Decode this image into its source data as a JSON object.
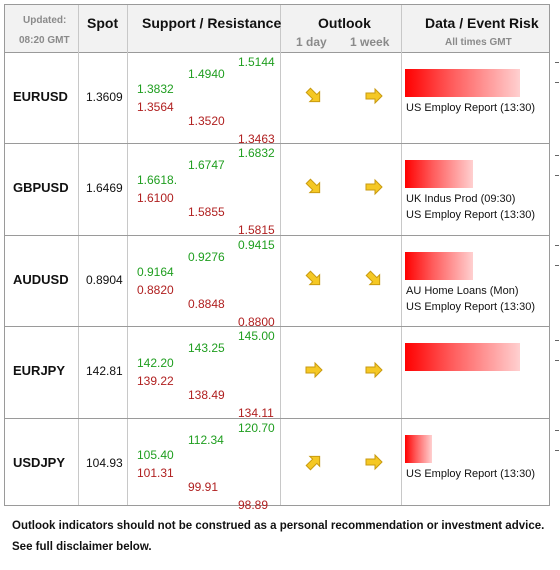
{
  "header": {
    "updated_label": "Updated:",
    "updated_time": "08:20 GMT",
    "spot": "Spot",
    "support_resistance": "Support / Resistance",
    "outlook": "Outlook",
    "outlook_1day": "1 day",
    "outlook_1week": "1 week",
    "data_event_risk": "Data / Event Risk",
    "all_times": "All times GMT"
  },
  "rows": [
    {
      "pair": "EURUSD",
      "spot": "1.3609",
      "s1_top": "1.3832",
      "s1_bottom": "1.3564",
      "s2_top": "1.4940",
      "s2_bottom": "1.3520",
      "s3_top": "1.5144",
      "s3_bottom": "1.3463",
      "outlook_1day": "down-right",
      "outlook_1week": "right",
      "risk_level": 0.85,
      "events": [
        "US Employ Report (13:30)"
      ]
    },
    {
      "pair": "GBPUSD",
      "spot": "1.6469",
      "s1_top": "1.6618.",
      "s1_bottom": "1.6100",
      "s2_top": "1.6747",
      "s2_bottom": "1.5855",
      "s3_top": "1.6832",
      "s3_bottom": "1.5815",
      "outlook_1day": "down-right",
      "outlook_1week": "right",
      "risk_level": 0.5,
      "events": [
        "UK Indus Prod (09:30)",
        "US Employ Report (13:30)"
      ]
    },
    {
      "pair": "AUDUSD",
      "spot": "0.8904",
      "s1_top": "0.9164",
      "s1_bottom": "0.8820",
      "s2_top": "0.9276",
      "s2_bottom": "0.8848",
      "s3_top": "0.9415",
      "s3_bottom": "0.8800",
      "outlook_1day": "down-right",
      "outlook_1week": "down-right",
      "risk_level": 0.5,
      "events": [
        "AU Home Loans   (Mon)",
        "US Employ Report (13:30)"
      ]
    },
    {
      "pair": "EURJPY",
      "spot": "142.81",
      "s1_top": "142.20",
      "s1_bottom": "139.22",
      "s2_top": "143.25",
      "s2_bottom": "138.49",
      "s3_top": "145.00",
      "s3_bottom": "134.11",
      "outlook_1day": "right",
      "outlook_1week": "right",
      "risk_level": 0.85,
      "events": []
    },
    {
      "pair": "USDJPY",
      "spot": "104.93",
      "s1_top": "105.40",
      "s1_bottom": "101.31",
      "s2_top": "112.34",
      "s2_bottom": "99.91",
      "s3_top": "120.70",
      "s3_bottom": "98.89",
      "outlook_1day": "up-right",
      "outlook_1week": "right",
      "risk_level": 0.2,
      "events": [
        "US Employ Report (13:30)"
      ]
    }
  ],
  "footer": {
    "line1": "Outlook indicators should not be construed as a personal recommendation or investment advice.",
    "line2": "See full disclaimer below."
  },
  "colors": {
    "support": "#b02020",
    "resistance": "#1f9e1f",
    "arrow": "#f0c020",
    "risk": "#ff0000"
  }
}
